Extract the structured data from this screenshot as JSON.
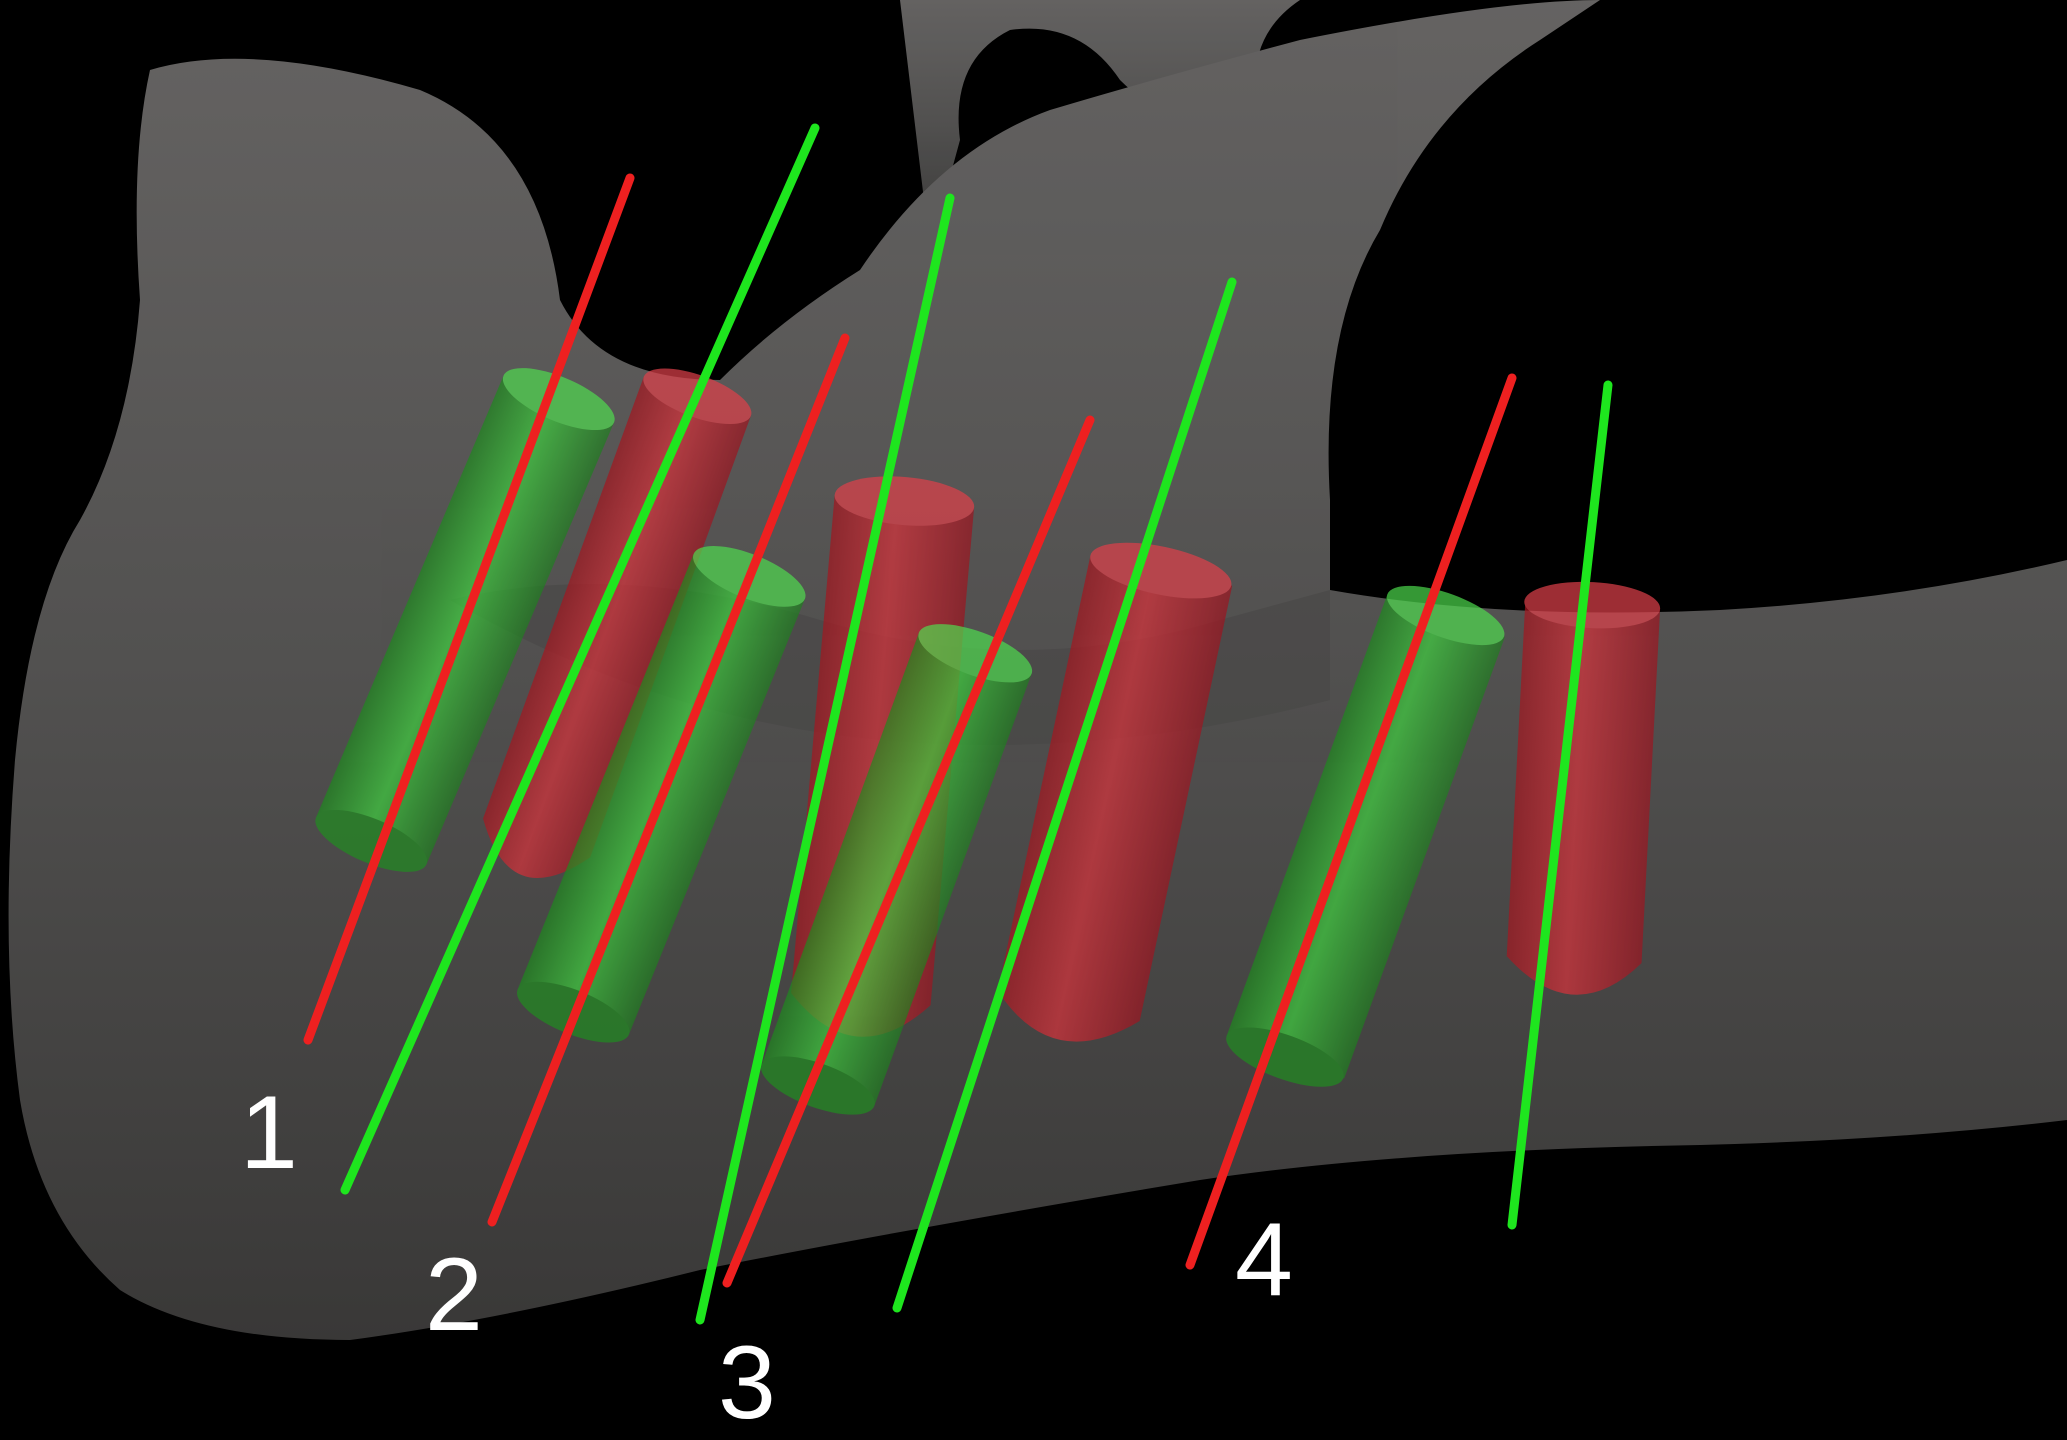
{
  "labels": [
    "1",
    "2",
    "3",
    "4"
  ],
  "colors": {
    "background": "#000000",
    "bone": "#585756",
    "planned_implant": "#2fc52f",
    "planned_axis": "#1ee61e",
    "placed_implant": "#c8202a",
    "placed_axis": "#ee2020"
  }
}
